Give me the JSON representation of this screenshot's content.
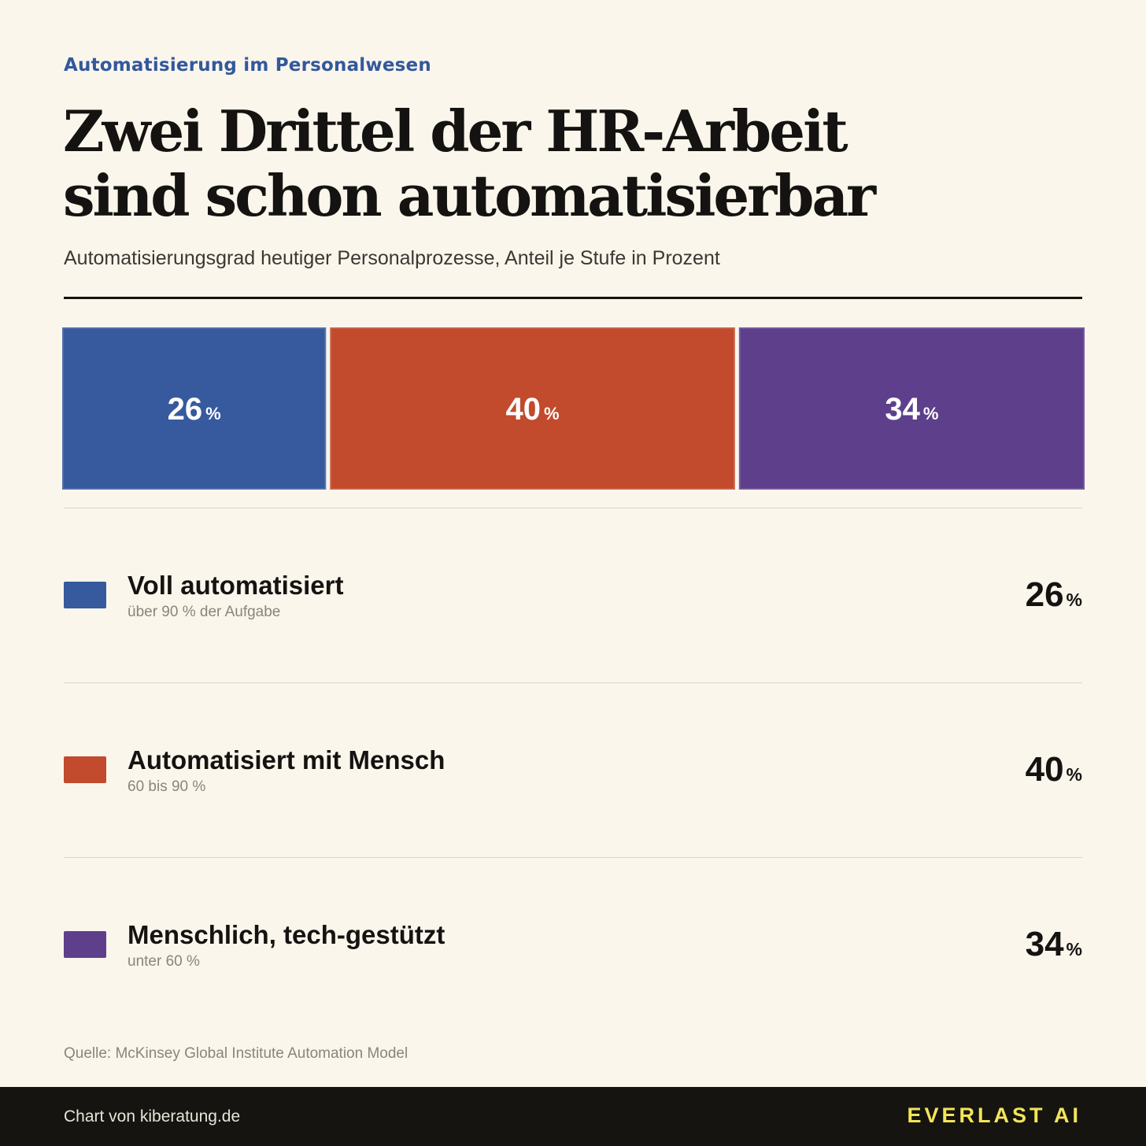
{
  "header": {
    "kicker": "Automatisierung im Personalwesen",
    "title_line1": "Zwei Drittel der HR-Arbeit",
    "title_line2": "sind schon automatisierbar",
    "subtitle": "Automatisierungsgrad heutiger Personalprozesse, Anteil je Stufe in Prozent"
  },
  "chart_data": {
    "type": "bar",
    "orientation": "horizontal-stacked-100",
    "title": "Zwei Drittel der HR-Arbeit sind schon automatisierbar",
    "subtitle": "Automatisierungsgrad heutiger Personalprozesse, Anteil je Stufe in Prozent",
    "unit": "%",
    "xlim": [
      0,
      100
    ],
    "grid": false,
    "legend_position": "below",
    "series": [
      {
        "name": "Voll automatisiert",
        "description": "über 90 % der Aufgabe",
        "value": 26,
        "color": "#365A9D"
      },
      {
        "name": "Automatisiert mit Mensch",
        "description": "60 bis 90 %",
        "value": 40,
        "color": "#C24A2D"
      },
      {
        "name": "Menschlich, tech-gestützt",
        "description": "unter 60 %",
        "value": 34,
        "color": "#5E3F8C"
      }
    ]
  },
  "source": "Quelle: McKinsey Global Institute Automation Model",
  "footer": {
    "credit": "Chart von kiberatung.de",
    "brand": "EVERLAST AI"
  },
  "colors": {
    "background": "#FAF6EC",
    "text": "#151311",
    "kicker": "#33589C",
    "footer_background": "#161410",
    "brand": "#F2E55A"
  }
}
